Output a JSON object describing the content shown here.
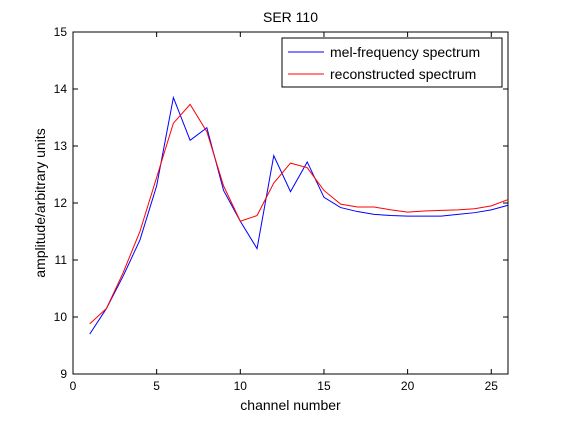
{
  "chart_data": {
    "type": "line",
    "title": "SER 110",
    "xlabel": "channel number",
    "ylabel": "amplitude/arbitrary units",
    "xlim": [
      0,
      26
    ],
    "ylim": [
      9,
      15
    ],
    "xticks": [
      0,
      5,
      10,
      15,
      20,
      25
    ],
    "yticks": [
      9,
      10,
      11,
      12,
      13,
      14,
      15
    ],
    "grid": false,
    "legend_position": "top-right",
    "x": [
      1,
      2,
      3,
      4,
      5,
      6,
      7,
      8,
      9,
      10,
      11,
      12,
      13,
      14,
      15,
      16,
      17,
      18,
      19,
      20,
      21,
      22,
      23,
      24,
      25,
      26
    ],
    "series": [
      {
        "name": "mel-frequency spectrum",
        "color": "#0000ff",
        "values": [
          9.7,
          10.15,
          10.72,
          11.35,
          12.3,
          13.85,
          13.1,
          13.32,
          12.22,
          11.68,
          11.2,
          12.83,
          12.2,
          12.72,
          12.1,
          11.92,
          11.85,
          11.8,
          11.78,
          11.77,
          11.77,
          11.77,
          11.8,
          11.83,
          11.88,
          11.96
        ]
      },
      {
        "name": "reconstructed spectrum",
        "color": "#ff0000",
        "values": [
          9.88,
          10.15,
          10.78,
          11.5,
          12.45,
          13.4,
          13.73,
          13.25,
          12.3,
          11.68,
          11.78,
          12.35,
          12.7,
          12.62,
          12.22,
          11.98,
          11.93,
          11.93,
          11.88,
          11.84,
          11.86,
          11.87,
          11.88,
          11.9,
          11.95,
          12.06
        ]
      }
    ]
  }
}
